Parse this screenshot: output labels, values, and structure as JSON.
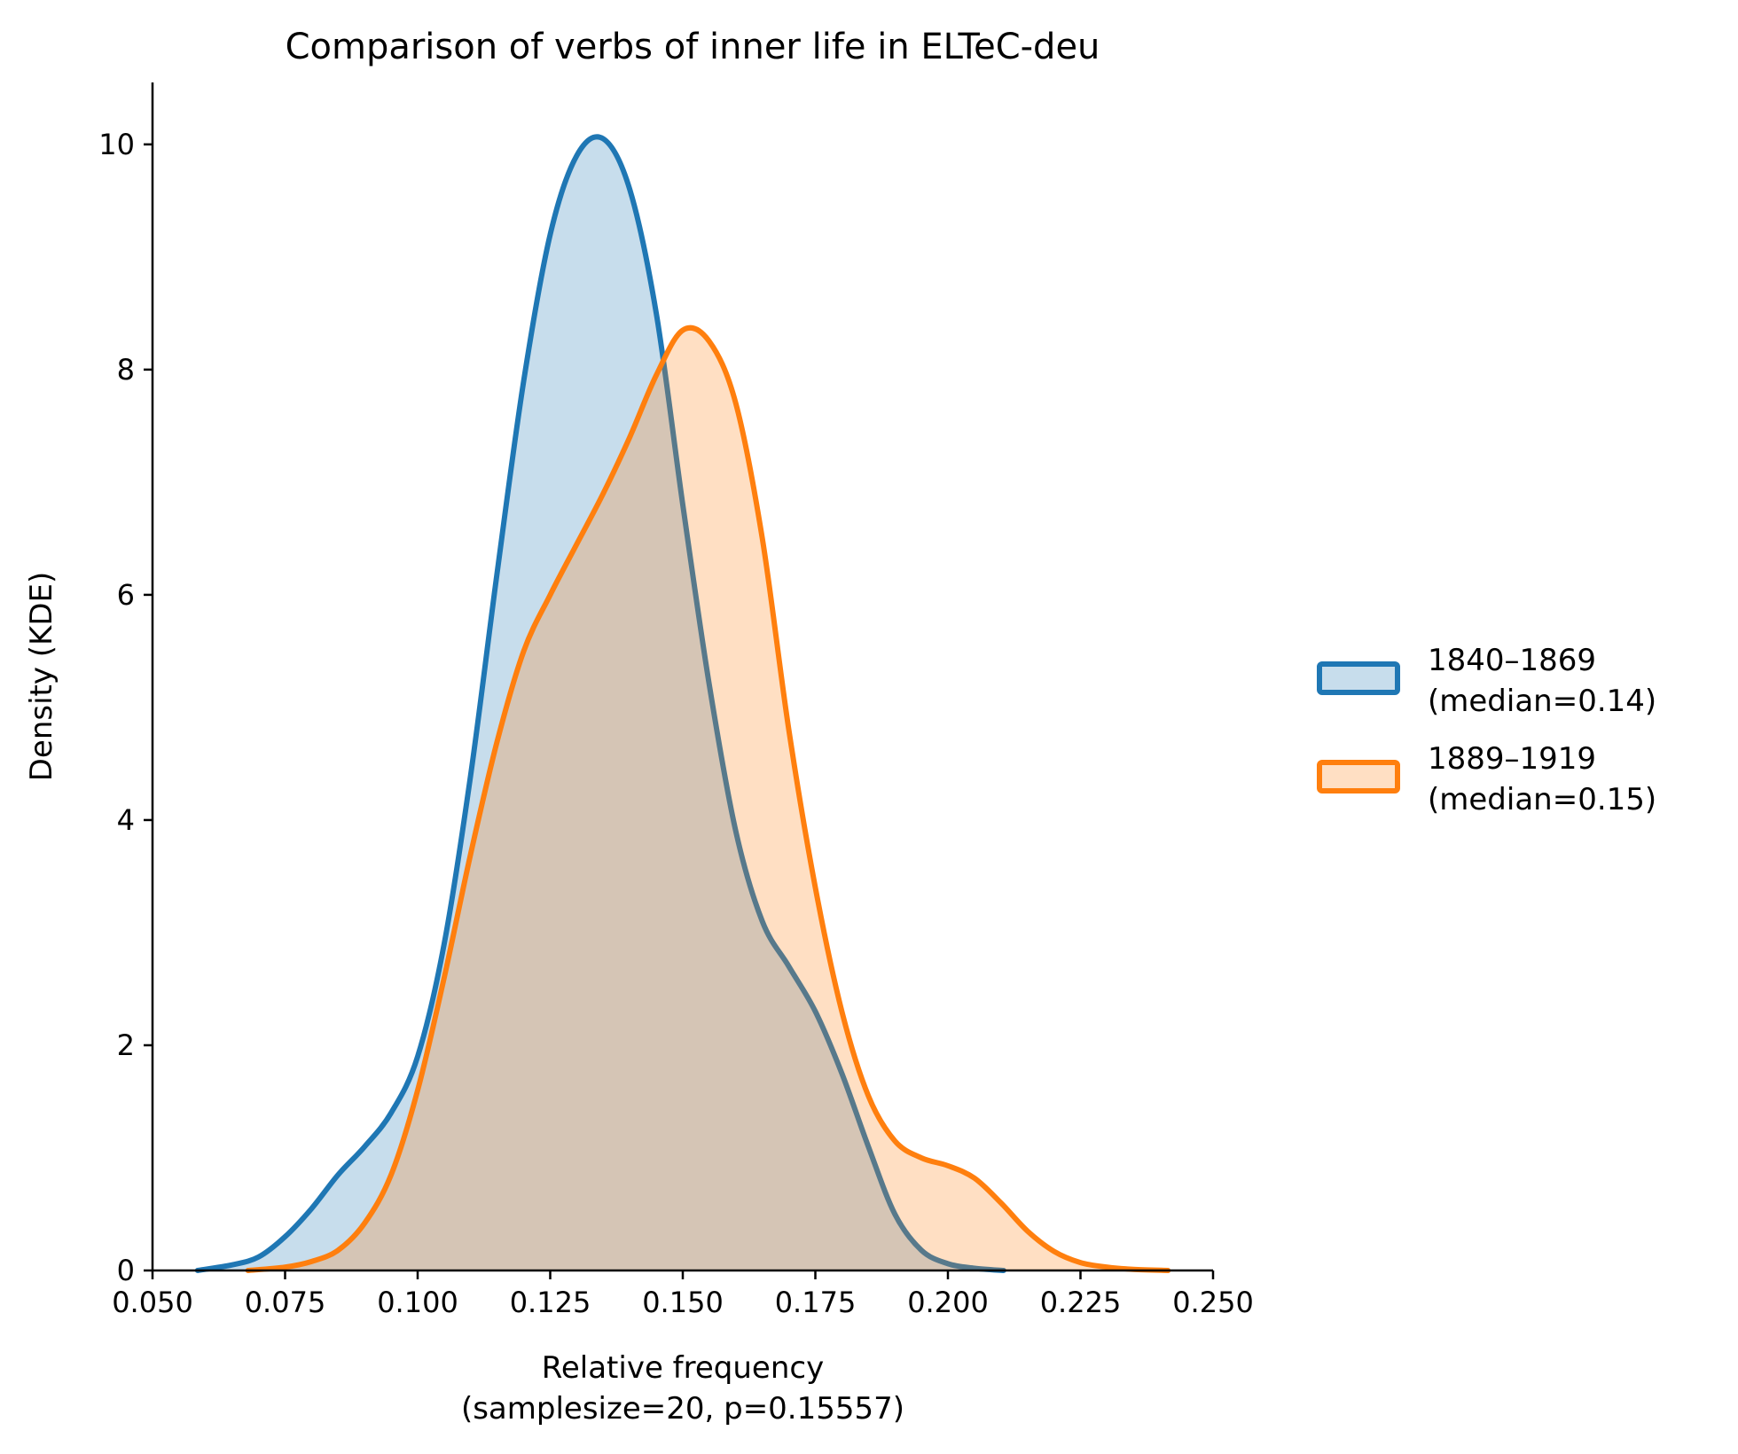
{
  "chart_data": {
    "type": "area",
    "title": "Comparison of verbs of inner life in ELTeC-deu",
    "xlabel": [
      "Relative frequency",
      "(samplesize=20, p=0.15557)"
    ],
    "ylabel": "Density (KDE)",
    "xlim": [
      0.05,
      0.25
    ],
    "ylim": [
      0,
      10.55
    ],
    "xticks": [
      0.05,
      0.075,
      0.1,
      0.125,
      0.15,
      0.175,
      0.2,
      0.225,
      0.25
    ],
    "xtick_labels": [
      "0.050",
      "0.075",
      "0.100",
      "0.125",
      "0.150",
      "0.175",
      "0.200",
      "0.225",
      "0.250"
    ],
    "yticks": [
      0,
      2,
      4,
      6,
      8,
      10
    ],
    "ytick_labels": [
      "0",
      "2",
      "4",
      "6",
      "8",
      "10"
    ],
    "grid": false,
    "legend_position": "right",
    "series": [
      {
        "name": "1840–1869\n(median=0.14)",
        "legend_lines": [
          "1840–1869",
          "(median=0.14)"
        ],
        "color": "#1f77b4",
        "points": [
          [
            0.0585,
            0.0
          ],
          [
            0.065,
            0.05
          ],
          [
            0.07,
            0.12
          ],
          [
            0.075,
            0.3
          ],
          [
            0.08,
            0.55
          ],
          [
            0.085,
            0.85
          ],
          [
            0.09,
            1.1
          ],
          [
            0.095,
            1.4
          ],
          [
            0.1,
            1.9
          ],
          [
            0.105,
            2.9
          ],
          [
            0.11,
            4.4
          ],
          [
            0.115,
            6.2
          ],
          [
            0.12,
            7.9
          ],
          [
            0.125,
            9.2
          ],
          [
            0.13,
            9.9
          ],
          [
            0.135,
            10.05
          ],
          [
            0.14,
            9.6
          ],
          [
            0.145,
            8.5
          ],
          [
            0.15,
            6.8
          ],
          [
            0.155,
            5.2
          ],
          [
            0.16,
            3.9
          ],
          [
            0.165,
            3.1
          ],
          [
            0.17,
            2.7
          ],
          [
            0.175,
            2.3
          ],
          [
            0.18,
            1.75
          ],
          [
            0.185,
            1.1
          ],
          [
            0.19,
            0.5
          ],
          [
            0.195,
            0.18
          ],
          [
            0.2,
            0.06
          ],
          [
            0.205,
            0.02
          ],
          [
            0.2105,
            0.0
          ]
        ]
      },
      {
        "name": "1889–1919\n(median=0.15)",
        "legend_lines": [
          "1889–1919",
          "(median=0.15)"
        ],
        "color": "#ff7f0e",
        "points": [
          [
            0.068,
            0.0
          ],
          [
            0.075,
            0.03
          ],
          [
            0.08,
            0.08
          ],
          [
            0.085,
            0.18
          ],
          [
            0.09,
            0.42
          ],
          [
            0.095,
            0.85
          ],
          [
            0.1,
            1.6
          ],
          [
            0.105,
            2.6
          ],
          [
            0.11,
            3.7
          ],
          [
            0.115,
            4.7
          ],
          [
            0.12,
            5.5
          ],
          [
            0.125,
            6.0
          ],
          [
            0.13,
            6.45
          ],
          [
            0.135,
            6.9
          ],
          [
            0.14,
            7.4
          ],
          [
            0.145,
            7.95
          ],
          [
            0.15,
            8.35
          ],
          [
            0.155,
            8.25
          ],
          [
            0.16,
            7.7
          ],
          [
            0.165,
            6.5
          ],
          [
            0.17,
            4.8
          ],
          [
            0.175,
            3.4
          ],
          [
            0.18,
            2.3
          ],
          [
            0.185,
            1.55
          ],
          [
            0.19,
            1.15
          ],
          [
            0.195,
            1.0
          ],
          [
            0.2,
            0.93
          ],
          [
            0.205,
            0.82
          ],
          [
            0.21,
            0.6
          ],
          [
            0.215,
            0.35
          ],
          [
            0.22,
            0.17
          ],
          [
            0.225,
            0.07
          ],
          [
            0.23,
            0.03
          ],
          [
            0.235,
            0.01
          ],
          [
            0.2415,
            0.0
          ]
        ]
      }
    ]
  }
}
